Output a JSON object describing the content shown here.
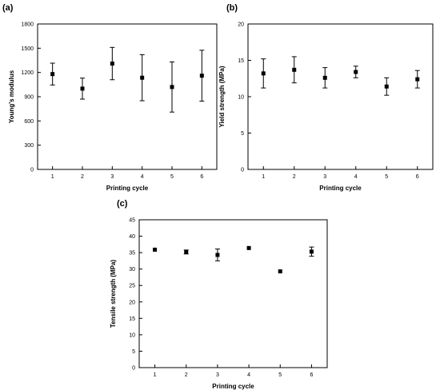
{
  "chart_data": [
    {
      "type": "scatter",
      "panel_label": "(a)",
      "xlabel": "Printing cycle",
      "ylabel": "Young's modulus",
      "xlim": [
        0.5,
        6.5
      ],
      "ylim": [
        0,
        1800
      ],
      "xticks": [
        1,
        2,
        3,
        4,
        5,
        6
      ],
      "yticks": [
        0,
        300,
        600,
        900,
        1200,
        1500,
        1800
      ],
      "x": [
        1,
        2,
        3,
        4,
        5,
        6
      ],
      "y": [
        1180,
        1000,
        1310,
        1135,
        1020,
        1160
      ],
      "error": [
        135,
        130,
        200,
        285,
        310,
        315
      ],
      "grid": false
    },
    {
      "type": "scatter",
      "panel_label": "(b)",
      "xlabel": "Printing cycle",
      "ylabel": "Yield strength (MPa)",
      "xlim": [
        0.5,
        6.5
      ],
      "ylim": [
        0,
        20
      ],
      "xticks": [
        1,
        2,
        3,
        4,
        5,
        6
      ],
      "yticks": [
        0,
        5,
        10,
        15,
        20
      ],
      "x": [
        1,
        2,
        3,
        4,
        5,
        6
      ],
      "y": [
        13.2,
        13.7,
        12.6,
        13.4,
        11.4,
        12.4
      ],
      "error": [
        2.0,
        1.8,
        1.4,
        0.8,
        1.2,
        1.2
      ],
      "grid": false
    },
    {
      "type": "scatter",
      "panel_label": "(c)",
      "xlabel": "Printing cycle",
      "ylabel": "Tensile strength (MPa)",
      "xlim": [
        0.5,
        6.5
      ],
      "ylim": [
        0,
        45
      ],
      "xticks": [
        1,
        2,
        3,
        4,
        5,
        6
      ],
      "yticks": [
        0,
        5,
        10,
        15,
        20,
        25,
        30,
        35,
        40,
        45
      ],
      "x": [
        1,
        2,
        3,
        4,
        5,
        6
      ],
      "y": [
        35.9,
        35.2,
        34.3,
        36.4,
        29.3,
        35.3
      ],
      "error": [
        0.3,
        0.6,
        1.8,
        0.3,
        0.2,
        1.4
      ],
      "grid": false
    }
  ]
}
